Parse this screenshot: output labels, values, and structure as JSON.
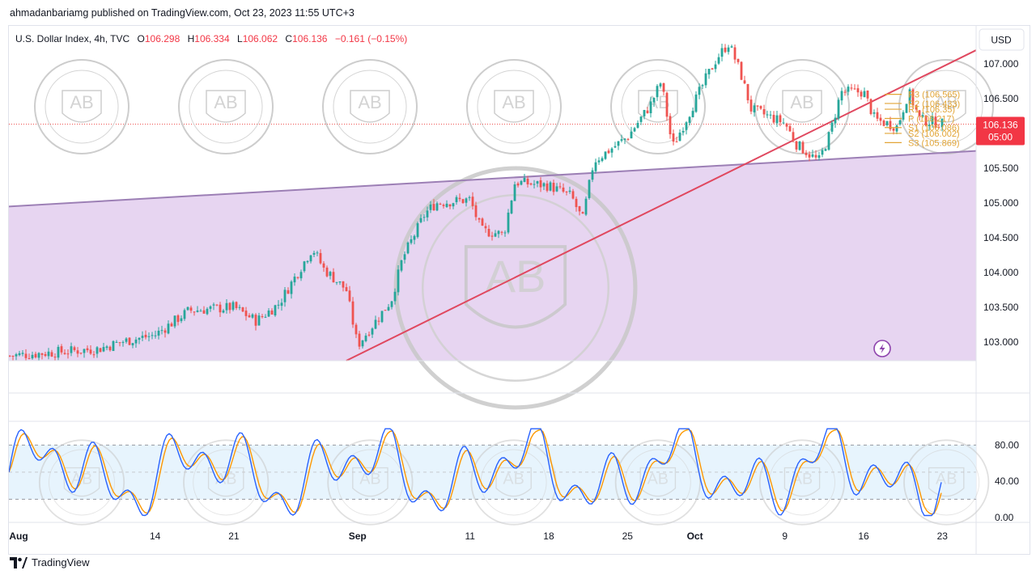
{
  "caption": "ahmadanbariamg published on TradingView.com, Oct 23, 2023 11:55 UTC+3",
  "branding": {
    "text": "TradingView",
    "icon": "tradingview-logo-icon"
  },
  "legend": {
    "symbol": "U.S. Dollar Index, 4h, TVC",
    "o_label": "O",
    "o_value": "106.298",
    "h_label": "H",
    "h_value": "106.334",
    "l_label": "L",
    "l_value": "106.062",
    "c_label": "C",
    "c_value": "106.136",
    "change": "−0.161 (−0.15%)"
  },
  "currency_button": "USD",
  "price_tag": {
    "price": "106.136",
    "countdown": "05:00"
  },
  "colors": {
    "up": "#26a69a",
    "down": "#ef5350",
    "channel_line": "#9c7fb5",
    "channel_fill": "#e7d5f1",
    "trendline": "#e0485f",
    "pivot": "#e2a537",
    "stoch_k": "#2962ff",
    "stoch_d": "#ff9800",
    "stoch_band": "#e3f2fd"
  },
  "chart_data": [
    {
      "type": "candlestick",
      "title": "U.S. Dollar Index, 4h, TVC",
      "y_ticks": [
        "107.000",
        "106.500",
        "106.000",
        "105.500",
        "105.000",
        "104.500",
        "104.000",
        "103.500",
        "103.000"
      ],
      "ylim": [
        102.73,
        107.55
      ],
      "x_ticks": [
        "Aug",
        "14",
        "21",
        "Sep",
        "11",
        "18",
        "25",
        "Oct",
        "9",
        "16",
        "23"
      ],
      "close_path": [
        {
          "date": "Aug 1",
          "value": 102.8
        },
        {
          "date": "Aug 9",
          "value": 102.9
        },
        {
          "date": "Aug 11",
          "value": 103.0
        },
        {
          "date": "Aug 14",
          "value": 103.1
        },
        {
          "date": "Aug 17",
          "value": 103.45
        },
        {
          "date": "Aug 21",
          "value": 103.5
        },
        {
          "date": "Aug 23",
          "value": 103.3
        },
        {
          "date": "Aug 25",
          "value": 103.55
        },
        {
          "date": "Aug 28",
          "value": 104.35
        },
        {
          "date": "Aug 29",
          "value": 104.05
        },
        {
          "date": "Aug 31",
          "value": 103.75
        },
        {
          "date": "Sep 1",
          "value": 102.95
        },
        {
          "date": "Sep 4",
          "value": 103.6
        },
        {
          "date": "Sep 5",
          "value": 104.2
        },
        {
          "date": "Sep 7",
          "value": 104.85
        },
        {
          "date": "Sep 8",
          "value": 105.0
        },
        {
          "date": "Sep 11",
          "value": 105.05
        },
        {
          "date": "Sep 12",
          "value": 104.6
        },
        {
          "date": "Sep 14",
          "value": 104.55
        },
        {
          "date": "Sep 15",
          "value": 105.3
        },
        {
          "date": "Sep 18",
          "value": 105.25
        },
        {
          "date": "Sep 20",
          "value": 105.1
        },
        {
          "date": "Sep 21",
          "value": 104.75
        },
        {
          "date": "Sep 22",
          "value": 105.6
        },
        {
          "date": "Sep 25",
          "value": 105.95
        },
        {
          "date": "Sep 27",
          "value": 106.4
        },
        {
          "date": "Sep 28",
          "value": 106.75
        },
        {
          "date": "Sep 29",
          "value": 105.8
        },
        {
          "date": "Oct 2",
          "value": 106.8
        },
        {
          "date": "Oct 3",
          "value": 107.1
        },
        {
          "date": "Oct 4",
          "value": 107.3
        },
        {
          "date": "Oct 5",
          "value": 106.9
        },
        {
          "date": "Oct 6",
          "value": 106.35
        },
        {
          "date": "Oct 9",
          "value": 106.15
        },
        {
          "date": "Oct 10",
          "value": 105.85
        },
        {
          "date": "Oct 12",
          "value": 105.6
        },
        {
          "date": "Oct 13",
          "value": 106.0
        },
        {
          "date": "Oct 14",
          "value": 106.6
        },
        {
          "date": "Oct 16",
          "value": 106.6
        },
        {
          "date": "Oct 17",
          "value": 106.2
        },
        {
          "date": "Oct 19",
          "value": 106.1
        },
        {
          "date": "Oct 20",
          "value": 106.6
        },
        {
          "date": "Oct 21",
          "value": 106.2
        },
        {
          "date": "Oct 23",
          "value": 106.14
        }
      ],
      "pivots": [
        {
          "label": "R3 (106.565)",
          "value": 106.565
        },
        {
          "label": "R2 (106.433)",
          "value": 106.433
        },
        {
          "label": "R1 (106.35)",
          "value": 106.35
        },
        {
          "label": "P (106.217)",
          "value": 106.217
        },
        {
          "label": "S1 (106.086)",
          "value": 106.086
        },
        {
          "label": "S2 (106.002)",
          "value": 106.002
        },
        {
          "label": "S3 (105.869)",
          "value": 105.869
        }
      ],
      "channel_line": [
        {
          "date": "Aug 1",
          "value": 104.95
        },
        {
          "date": "Oct 26",
          "value": 105.75
        }
      ],
      "trendline": [
        {
          "date": "Aug 31",
          "value": 102.73
        },
        {
          "date": "Oct 26",
          "value": 107.2
        }
      ],
      "current_price": 106.136
    },
    {
      "type": "line",
      "title": "",
      "y_ticks": [
        "80.00",
        "40.00",
        "0.00"
      ],
      "ylim": [
        -2,
        100
      ],
      "band": [
        20,
        80
      ],
      "series": [
        {
          "role": "stoch-k",
          "color": "#2962ff"
        },
        {
          "role": "stoch-d",
          "color": "#ff9800"
        }
      ]
    }
  ]
}
